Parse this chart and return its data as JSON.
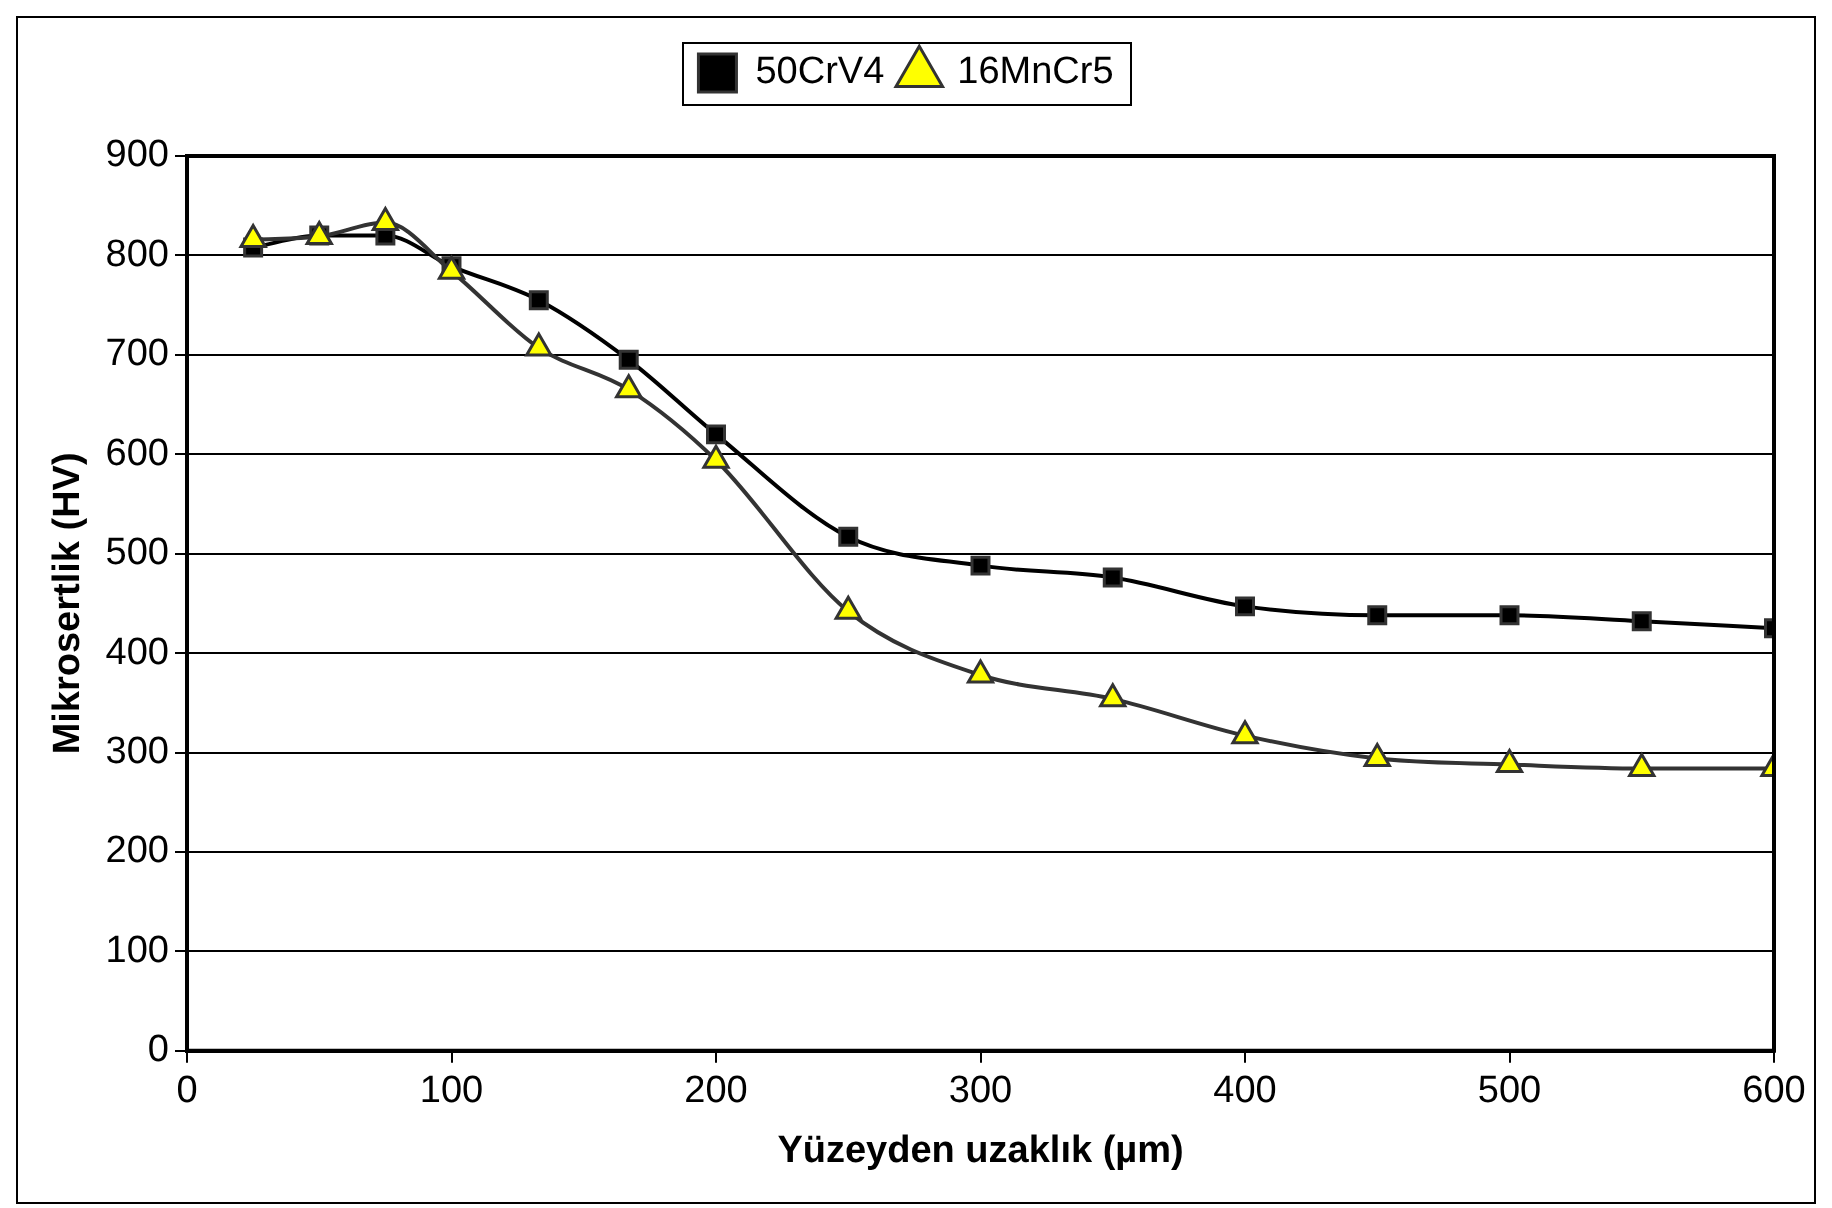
{
  "chart_data": {
    "type": "line",
    "xlabel": "Yüzeyden uzaklık (µm)",
    "ylabel": "Mikrosertlik (HV)",
    "xlim": [
      0,
      600
    ],
    "xticks": [
      0,
      100,
      200,
      300,
      400,
      500,
      600
    ],
    "ylim": [
      0,
      900
    ],
    "yticks": [
      0,
      100,
      200,
      300,
      400,
      500,
      600,
      700,
      800,
      900
    ],
    "grid": "y",
    "legend": "top",
    "line_style": "solid",
    "series": [
      {
        "name": "50CrV4",
        "color": "#000000",
        "marker": "square",
        "x": [
          25,
          50,
          75,
          100,
          133,
          167,
          200,
          250,
          300,
          350,
          400,
          450,
          500,
          550,
          600
        ],
        "values": [
          808,
          820,
          820,
          789,
          755,
          695,
          620,
          517,
          488,
          476,
          447,
          438,
          438,
          432,
          425
        ]
      },
      {
        "name": "16MnCr5",
        "color": "#ffff00",
        "marker": "triangle",
        "x": [
          25,
          50,
          75,
          100,
          133,
          167,
          200,
          250,
          300,
          350,
          400,
          450,
          500,
          550,
          600
        ],
        "values": [
          816,
          819,
          833,
          784,
          707,
          665,
          594,
          442,
          378,
          354,
          317,
          294,
          288,
          284,
          284
        ]
      }
    ]
  }
}
